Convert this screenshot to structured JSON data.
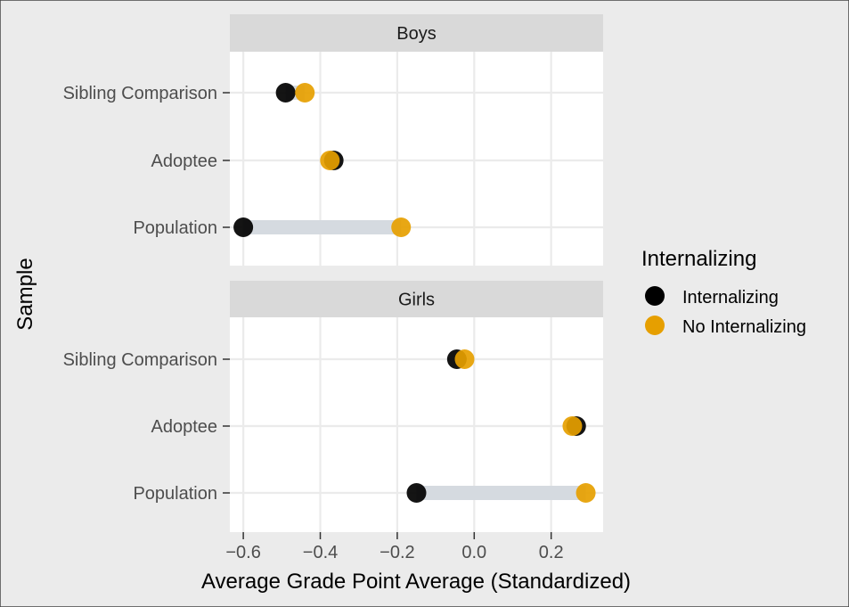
{
  "chart_data": {
    "type": "scatter",
    "xlabel": "Average Grade Point Average (Standardized)",
    "ylabel": "Sample",
    "xlim": [
      -0.635,
      0.335
    ],
    "xticks": [
      -0.6,
      -0.4,
      -0.2,
      0.0,
      0.2
    ],
    "xtick_labels": [
      "−0.6",
      "−0.4",
      "−0.2",
      "0.0",
      "0.2"
    ],
    "categories": [
      "Sibling Comparison",
      "Adoptee",
      "Population"
    ],
    "grid": true,
    "legend": {
      "title": "Internalizing",
      "position": "right",
      "entries": [
        {
          "label": "Internalizing",
          "color": "#000000"
        },
        {
          "label": "No Internalizing",
          "color": "#E69F00"
        }
      ]
    },
    "colors": {
      "Internalizing": "#000000",
      "No Internalizing": "#E69F00",
      "segment": "#D5DAE0",
      "panel_bg": "#FFFFFF",
      "strip_bg": "#D9D9D9",
      "plot_bg": "#EBEBEB"
    },
    "panels": [
      {
        "name": "Boys",
        "series": [
          {
            "name": "Internalizing",
            "values": [
              -0.49,
              -0.365,
              -0.6
            ]
          },
          {
            "name": "No Internalizing",
            "values": [
              -0.44,
              -0.375,
              -0.19
            ]
          }
        ]
      },
      {
        "name": "Girls",
        "series": [
          {
            "name": "Internalizing",
            "values": [
              -0.045,
              0.265,
              -0.15
            ]
          },
          {
            "name": "No Internalizing",
            "values": [
              -0.025,
              0.255,
              0.29
            ]
          }
        ]
      }
    ]
  }
}
